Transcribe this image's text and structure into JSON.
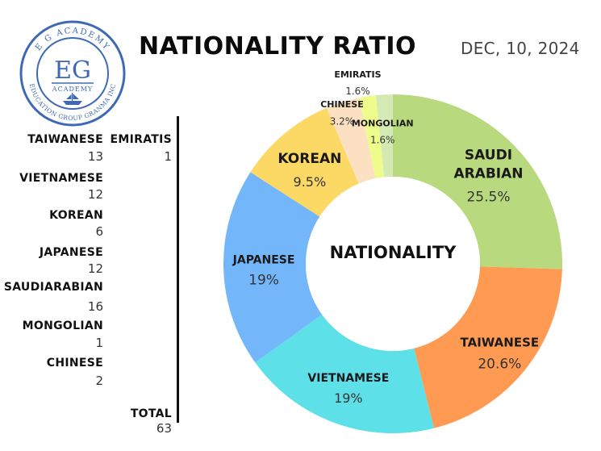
{
  "header": {
    "title": "NATIONALITY RATIO",
    "date": "DEC, 10, 2024"
  },
  "logo": {
    "top_text": "E G ACADEMY",
    "initials": "EG",
    "sub_text": "ACADEMY",
    "bottom_text": "EDUCATION GROUP GRANMA INC"
  },
  "counts": {
    "items": [
      {
        "name": "TAIWANESE",
        "value": "13"
      },
      {
        "name": "VIETNAMESE",
        "value": "12"
      },
      {
        "name": "KOREAN",
        "value": "6"
      },
      {
        "name": "JAPANESE",
        "value": "12"
      },
      {
        "name": "SAUDIARABIAN",
        "value": "16"
      },
      {
        "name": "MONGOLIAN",
        "value": "1"
      },
      {
        "name": "CHINESE",
        "value": "2"
      }
    ],
    "extra": {
      "name": "EMIRATIS",
      "value": "1"
    },
    "total_label": "TOTAL",
    "total_value": "63"
  },
  "chart_data": {
    "type": "pie",
    "center_label": "NATIONALITY",
    "slices": [
      {
        "label": "SAUDI ARABIAN",
        "percent": 25.5,
        "percent_text": "25.5%",
        "color": "#b8d97e"
      },
      {
        "label": "TAIWANESE",
        "percent": 20.6,
        "percent_text": "20.6%",
        "color": "#ff9a52"
      },
      {
        "label": "VIETNAMESE",
        "percent": 19,
        "percent_text": "19%",
        "color": "#5ee0e8"
      },
      {
        "label": "JAPANESE",
        "percent": 19,
        "percent_text": "19%",
        "color": "#74b6fa"
      },
      {
        "label": "KOREAN",
        "percent": 9.5,
        "percent_text": "9.5%",
        "color": "#fcd864"
      },
      {
        "label": "CHINESE",
        "percent": 3.2,
        "percent_text": "3.2%",
        "color": "#fce0c2"
      },
      {
        "label": "MONGOLIAN",
        "percent": 1.6,
        "percent_text": "1.6%",
        "color": "#eefc8c"
      },
      {
        "label": "EMIRATIS",
        "percent": 1.6,
        "percent_text": "1.6%",
        "color": "#d4eab4"
      }
    ]
  }
}
